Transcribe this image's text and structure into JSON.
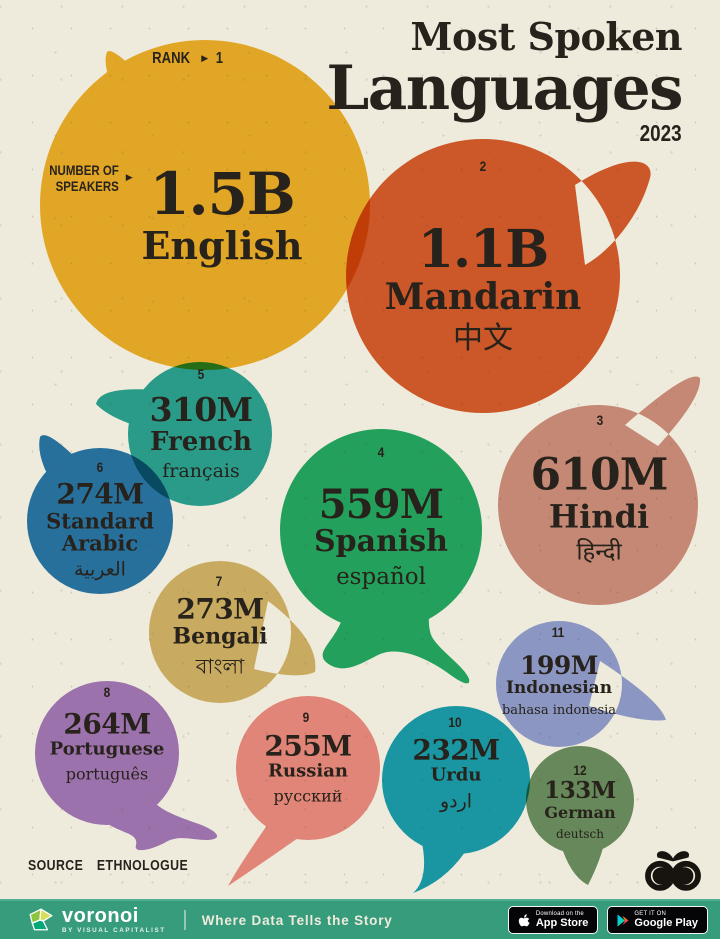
{
  "page": {
    "background": "#EFEBDC",
    "ink": "#27221B"
  },
  "header": {
    "title_line1": "Most Spoken",
    "title_line2": "Languages",
    "year": "2023"
  },
  "labels": {
    "rank": "RANK",
    "rank_value": "1",
    "arrow": "▶",
    "speakers_line1": "NUMBER OF",
    "speakers_line2": "SPEAKERS"
  },
  "bubbles": [
    {
      "id": "english",
      "rank": "1",
      "value": "1.5B",
      "name": "English",
      "native": "",
      "color": "#F1B42B"
    },
    {
      "id": "mandarin",
      "rank": "2",
      "value": "1.1B",
      "name": "Mandarin",
      "native": "中文",
      "color": "#DA5E2E"
    },
    {
      "id": "hindi",
      "rank": "3",
      "value": "610M",
      "name": "Hindi",
      "native": "हिन्दी",
      "color": "#D29488"
    },
    {
      "id": "spanish",
      "rank": "4",
      "value": "559M",
      "name": "Spanish",
      "native": "español",
      "color": "#25AE69"
    },
    {
      "id": "french",
      "rank": "5",
      "value": "310M",
      "name": "French",
      "native": "français",
      "color": "#2BA89E"
    },
    {
      "id": "arabic",
      "rank": "6",
      "value": "274M",
      "name": "Standard Arabic",
      "native": "العربية",
      "color": "#2A7AB5"
    },
    {
      "id": "bengali",
      "rank": "7",
      "value": "273M",
      "name": "Bengali",
      "native": "বাংলা",
      "color": "#D6BA6F"
    },
    {
      "id": "portuguese",
      "rank": "8",
      "value": "264M",
      "name": "Portuguese",
      "native": "português",
      "color": "#A77CC8"
    },
    {
      "id": "russian",
      "rank": "9",
      "value": "255M",
      "name": "Russian",
      "native": "русский",
      "color": "#EF908A"
    },
    {
      "id": "urdu",
      "rank": "10",
      "value": "232M",
      "name": "Urdu",
      "native": "اردو",
      "color": "#1AA3BB"
    },
    {
      "id": "indonesian",
      "rank": "11",
      "value": "199M",
      "name": "Indonesian",
      "native": "bahasa indonesia",
      "color": "#94A3E2"
    },
    {
      "id": "german",
      "rank": "12",
      "value": "133M",
      "name": "German",
      "native": "deutsch",
      "color": "#6E9468"
    }
  ],
  "footer": {
    "source_label": "SOURCE",
    "source_value": "ETHNOLOGUE",
    "brand": "voronoi",
    "brand_sub": "BY VISUAL CAPITALIST",
    "tagline": "Where Data Tells the Story",
    "bar_color": "#379C7C",
    "appstore_line1": "Download on the",
    "appstore_line2": "App Store",
    "gplay_line1": "GET IT ON",
    "gplay_line2": "Google Play"
  },
  "chart_data": {
    "type": "scatter",
    "variant": "bubble",
    "title": "Most Spoken Languages",
    "subtitle": "2023",
    "source": "Ethnologue",
    "size_encoding": "number of speakers",
    "categories": [
      "English",
      "Mandarin",
      "Hindi",
      "Spanish",
      "French",
      "Standard Arabic",
      "Bengali",
      "Portuguese",
      "Russian",
      "Urdu",
      "Indonesian",
      "German"
    ],
    "series": [
      {
        "name": "Speakers (millions)",
        "values": [
          1500,
          1100,
          610,
          559,
          310,
          274,
          273,
          264,
          255,
          232,
          199,
          133
        ]
      }
    ],
    "ranks": [
      1,
      2,
      3,
      4,
      5,
      6,
      7,
      8,
      9,
      10,
      11,
      12
    ],
    "display_values": [
      "1.5B",
      "1.1B",
      "610M",
      "559M",
      "310M",
      "274M",
      "273M",
      "264M",
      "255M",
      "232M",
      "199M",
      "133M"
    ],
    "native_labels": [
      "",
      "中文",
      "हिन्दी",
      "español",
      "français",
      "العربية",
      "বাংলা",
      "português",
      "русский",
      "اردو",
      "bahasa indonesia",
      "deutsch"
    ]
  }
}
